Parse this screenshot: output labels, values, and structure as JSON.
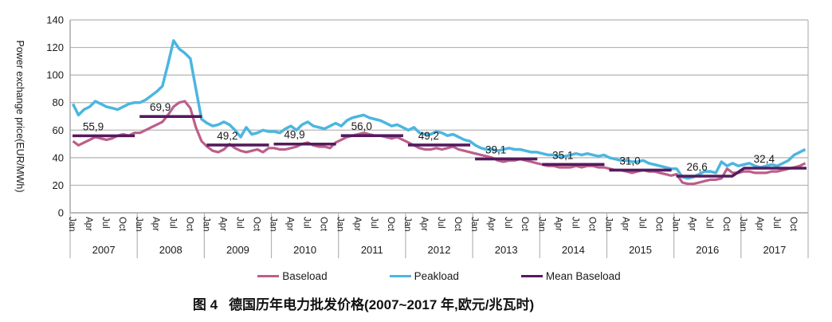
{
  "figure": {
    "caption_label": "图 4",
    "caption_text": "德国历年电力批发价格(2007~2017 年,欧元/兆瓦时)"
  },
  "chart_data": {
    "type": "line",
    "ylabel": "Power exchange price(EUR/MWh)",
    "ylim": [
      0,
      140
    ],
    "ytick_interval": 20,
    "ytick_labels": [
      "0",
      "20",
      "40",
      "60",
      "80",
      "100",
      "120",
      "140"
    ],
    "grid": "horizontal",
    "legend_position": "bottom",
    "years": [
      "2007",
      "2008",
      "2009",
      "2010",
      "2011",
      "2012",
      "2013",
      "2014",
      "2015",
      "2016",
      "2017"
    ],
    "month_tick_labels": [
      "Jan",
      "Apr",
      "Jul",
      "Oct"
    ],
    "series": [
      {
        "name": "Baseload",
        "color": "#bc5f8a",
        "monthly_values": [
          [
            52,
            49,
            51,
            53,
            55,
            54,
            53,
            54,
            56,
            57,
            56,
            58
          ],
          [
            58,
            60,
            62,
            64,
            66,
            71,
            77,
            80,
            81,
            76,
            62,
            52
          ],
          [
            48,
            45,
            44,
            46,
            50,
            47,
            45,
            44,
            45,
            46,
            44,
            47
          ],
          [
            47,
            46,
            46,
            47,
            48,
            50,
            51,
            49,
            48,
            48,
            47,
            51
          ],
          [
            53,
            55,
            56,
            57,
            58,
            57,
            56,
            56,
            55,
            54,
            55,
            53
          ],
          [
            51,
            49,
            47,
            46,
            46,
            47,
            46,
            47,
            48,
            46,
            45,
            44
          ],
          [
            43,
            42,
            41,
            40,
            38,
            37,
            38,
            38,
            39,
            38,
            37,
            36
          ],
          [
            35,
            34,
            34,
            33,
            33,
            33,
            34,
            33,
            34,
            34,
            33,
            33
          ],
          [
            32,
            31,
            31,
            30,
            29,
            30,
            31,
            30,
            30,
            29,
            28,
            27
          ],
          [
            28,
            22,
            21,
            21,
            22,
            23,
            24,
            24,
            25,
            32,
            29,
            29
          ],
          [
            30,
            30,
            29,
            29,
            29,
            30,
            30,
            31,
            32,
            33,
            34,
            36
          ]
        ]
      },
      {
        "name": "Peakload",
        "color": "#4cb6e0",
        "monthly_values": [
          [
            79,
            71,
            75,
            77,
            81,
            79,
            77,
            76,
            75,
            77,
            79,
            80
          ],
          [
            80,
            82,
            85,
            88,
            92,
            108,
            125,
            119,
            116,
            112,
            90,
            68
          ],
          [
            65,
            63,
            64,
            66,
            64,
            60,
            55,
            62,
            57,
            58,
            60,
            59
          ],
          [
            59,
            58,
            61,
            63,
            60,
            64,
            66,
            63,
            62,
            61,
            63,
            65
          ],
          [
            63,
            67,
            69,
            70,
            71,
            69,
            68,
            67,
            65,
            63,
            64,
            62
          ],
          [
            60,
            62,
            58,
            57,
            57,
            59,
            58,
            56,
            57,
            55,
            53,
            52
          ],
          [
            49,
            47,
            46,
            46,
            45,
            46,
            47,
            46,
            46,
            45,
            44,
            44
          ],
          [
            43,
            42,
            42,
            41,
            41,
            42,
            43,
            42,
            43,
            42,
            41,
            42
          ],
          [
            40,
            39,
            38,
            38,
            37,
            37,
            38,
            36,
            35,
            34,
            33,
            32
          ],
          [
            32,
            26,
            25,
            26,
            28,
            30,
            30,
            29,
            37,
            34,
            36,
            34
          ],
          [
            35,
            36,
            34,
            33,
            34,
            35,
            34,
            36,
            38,
            42,
            44,
            46
          ]
        ]
      },
      {
        "name": "Mean Baseload",
        "color": "#551a5e",
        "yearly_values": [
          55.9,
          69.9,
          49.2,
          49.9,
          56.0,
          49.2,
          39.1,
          35.1,
          31.0,
          26.6,
          32.4
        ],
        "yearly_labels": [
          "55,9",
          "69,9",
          "49,2",
          "49,9",
          "56,0",
          "49,2",
          "39,1",
          "35,1",
          "31,0",
          "26,6",
          "32,4"
        ]
      }
    ],
    "colors": {
      "grid": "#b4b4b4",
      "axis": "#a3a3a3",
      "text": "#1a1a1a"
    }
  }
}
